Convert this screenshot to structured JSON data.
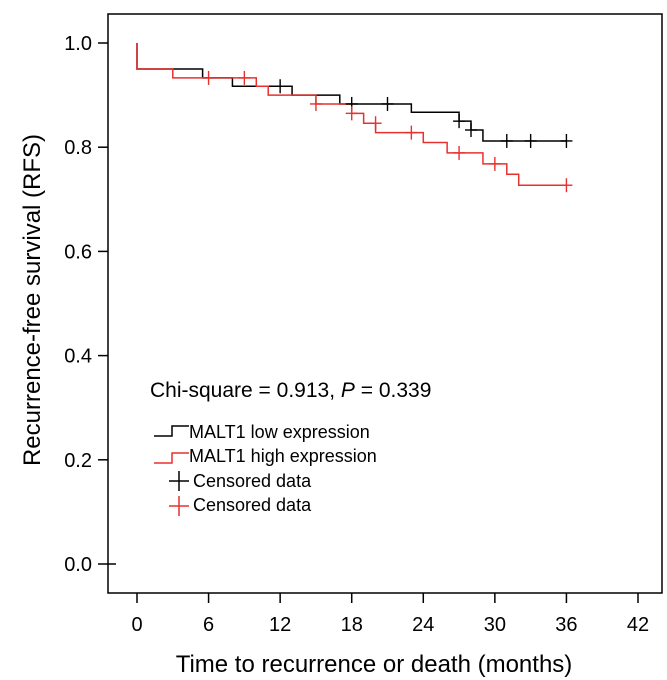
{
  "chart_data": {
    "type": "line",
    "subtype": "kaplan-meier-step",
    "xlabel": "Time to recurrence or death (months)",
    "ylabel": "Recurrence-free survival (RFS)",
    "xlim": [
      0,
      42
    ],
    "ylim": [
      0.0,
      1.0
    ],
    "x_ticks": [
      0,
      6,
      12,
      18,
      24,
      30,
      36,
      42
    ],
    "y_ticks": [
      0.0,
      0.2,
      0.4,
      0.6,
      0.8,
      1.0
    ],
    "x_tick_labels": [
      "0",
      "6",
      "12",
      "18",
      "24",
      "30",
      "36",
      "42"
    ],
    "y_tick_labels": [
      "0.0",
      "0.2",
      "0.4",
      "0.6",
      "0.8",
      "1.0"
    ],
    "grid": false,
    "annotation": {
      "prefix": "Chi-square = 0.913, ",
      "p_symbol": "P",
      "suffix": " = 0.339"
    },
    "legend": {
      "placement": "center-left",
      "entries": [
        {
          "label": "MALT1 low expression",
          "kind": "step",
          "color": "#000000"
        },
        {
          "label": "MALT1 high expression",
          "kind": "step",
          "color": "#e8312f"
        },
        {
          "label": "Censored data",
          "kind": "cross",
          "color": "#000000"
        },
        {
          "label": "Censored data",
          "kind": "cross",
          "color": "#e8312f"
        }
      ]
    },
    "series": [
      {
        "name": "MALT1 low expression",
        "color": "#000000",
        "steps": [
          [
            0,
            1.0
          ],
          [
            0,
            0.95
          ],
          [
            5.5,
            0.95
          ],
          [
            5.5,
            0.933
          ],
          [
            8,
            0.933
          ],
          [
            8,
            0.917
          ],
          [
            13,
            0.917
          ],
          [
            13,
            0.9
          ],
          [
            17,
            0.9
          ],
          [
            17,
            0.883
          ],
          [
            23,
            0.883
          ],
          [
            23,
            0.867
          ],
          [
            27,
            0.867
          ],
          [
            27,
            0.85
          ],
          [
            28,
            0.85
          ],
          [
            28,
            0.833
          ],
          [
            29,
            0.833
          ],
          [
            29,
            0.812
          ],
          [
            36,
            0.812
          ]
        ],
        "censored": [
          {
            "x": 12,
            "y": 0.917
          },
          {
            "x": 18,
            "y": 0.883
          },
          {
            "x": 21,
            "y": 0.883
          },
          {
            "x": 27,
            "y": 0.85
          },
          {
            "x": 28,
            "y": 0.833
          },
          {
            "x": 31,
            "y": 0.812
          },
          {
            "x": 33,
            "y": 0.812
          },
          {
            "x": 36,
            "y": 0.812
          }
        ]
      },
      {
        "name": "MALT1 high expression",
        "color": "#e8312f",
        "steps": [
          [
            0,
            1.0
          ],
          [
            0,
            0.95
          ],
          [
            3,
            0.95
          ],
          [
            3,
            0.933
          ],
          [
            10,
            0.933
          ],
          [
            10,
            0.917
          ],
          [
            11,
            0.917
          ],
          [
            11,
            0.9
          ],
          [
            15,
            0.9
          ],
          [
            15,
            0.883
          ],
          [
            18,
            0.883
          ],
          [
            18,
            0.865
          ],
          [
            19,
            0.865
          ],
          [
            19,
            0.846
          ],
          [
            20,
            0.846
          ],
          [
            20,
            0.828
          ],
          [
            24,
            0.828
          ],
          [
            24,
            0.809
          ],
          [
            26,
            0.809
          ],
          [
            26,
            0.789
          ],
          [
            29,
            0.789
          ],
          [
            29,
            0.768
          ],
          [
            31,
            0.768
          ],
          [
            31,
            0.748
          ],
          [
            32,
            0.748
          ],
          [
            32,
            0.727
          ],
          [
            36,
            0.727
          ]
        ],
        "censored": [
          {
            "x": 6,
            "y": 0.933
          },
          {
            "x": 9,
            "y": 0.933
          },
          {
            "x": 15,
            "y": 0.883
          },
          {
            "x": 18,
            "y": 0.865
          },
          {
            "x": 20,
            "y": 0.846
          },
          {
            "x": 23,
            "y": 0.828
          },
          {
            "x": 27,
            "y": 0.789
          },
          {
            "x": 30,
            "y": 0.768
          },
          {
            "x": 36,
            "y": 0.727
          }
        ]
      }
    ]
  }
}
